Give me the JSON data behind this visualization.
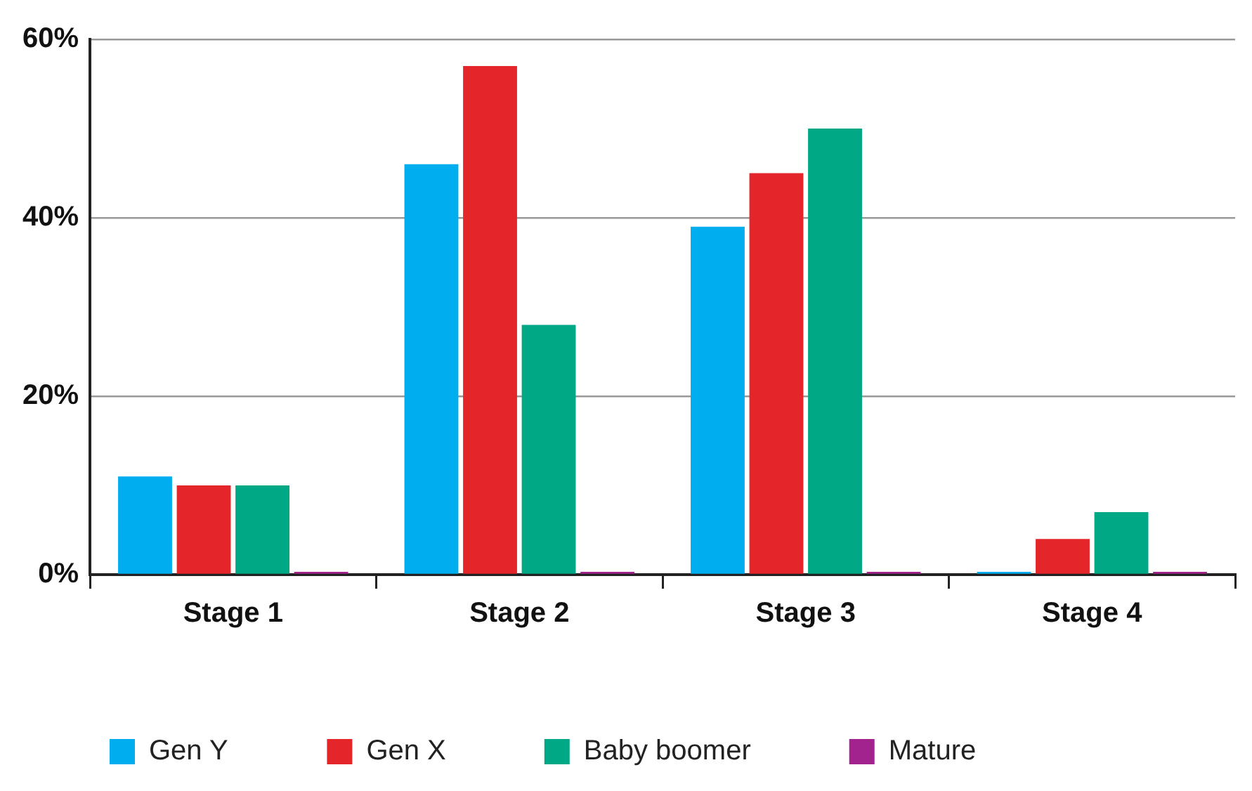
{
  "chart_data": {
    "type": "bar",
    "categories": [
      "Stage 1",
      "Stage 2",
      "Stage 3",
      "Stage 4"
    ],
    "series": [
      {
        "name": "Gen Y",
        "color": "#00aeef",
        "values": [
          11,
          46,
          39,
          0
        ]
      },
      {
        "name": "Gen X",
        "color": "#e4262a",
        "values": [
          10,
          57,
          45,
          4
        ]
      },
      {
        "name": "Baby boomer",
        "color": "#00a886",
        "values": [
          10,
          28,
          50,
          7
        ]
      },
      {
        "name": "Mature",
        "color": "#a3238e",
        "values": [
          0,
          0,
          0,
          0
        ]
      }
    ],
    "ylim": [
      0,
      60
    ],
    "yticks": [
      {
        "value": 0,
        "label": "0%"
      },
      {
        "value": 20,
        "label": "20%"
      },
      {
        "value": 40,
        "label": "40%"
      },
      {
        "value": 60,
        "label": "60%"
      }
    ],
    "grid": "y",
    "legend": "bottom"
  }
}
